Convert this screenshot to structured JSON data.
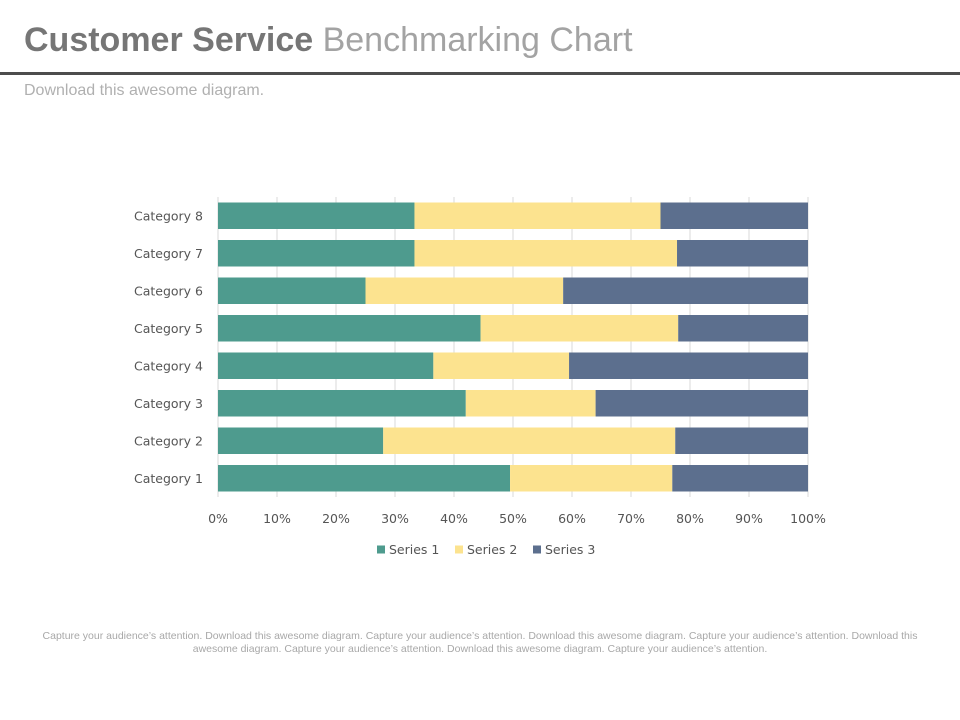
{
  "header": {
    "title_bold": "Customer Service",
    "title_light": "Benchmarking Chart",
    "subtitle": "Download this awesome diagram."
  },
  "footer": {
    "text": "Capture your audience’s attention. Download this awesome diagram. Capture your audience’s attention. Download this awesome diagram. Capture your audience’s attention. Download this awesome diagram. Capture your audience’s attention. Download this awesome diagram. Capture your audience’s attention."
  },
  "chart_data": {
    "type": "bar",
    "orientation": "horizontal",
    "stacking": "percent",
    "categories": [
      "Category 1",
      "Category 2",
      "Category 3",
      "Category 4",
      "Category 5",
      "Category 6",
      "Category 7",
      "Category 8"
    ],
    "series": [
      {
        "name": "Series 1",
        "color": "#4e9b8e",
        "values": [
          49.5,
          28,
          42,
          36.5,
          44.5,
          25,
          33.3,
          33.3
        ]
      },
      {
        "name": "Series 2",
        "color": "#fce38f",
        "values": [
          27.5,
          49.5,
          22,
          23,
          33.5,
          33.5,
          44.5,
          41.7
        ]
      },
      {
        "name": "Series 3",
        "color": "#5c6f8e",
        "values": [
          23,
          22.5,
          36,
          40.5,
          22,
          41.5,
          22.2,
          25
        ]
      }
    ],
    "x_ticks": [
      "0%",
      "10%",
      "20%",
      "30%",
      "40%",
      "50%",
      "60%",
      "70%",
      "80%",
      "90%",
      "100%"
    ],
    "xlim": [
      0,
      100
    ],
    "grid": "vertical",
    "legend_position": "bottom"
  }
}
